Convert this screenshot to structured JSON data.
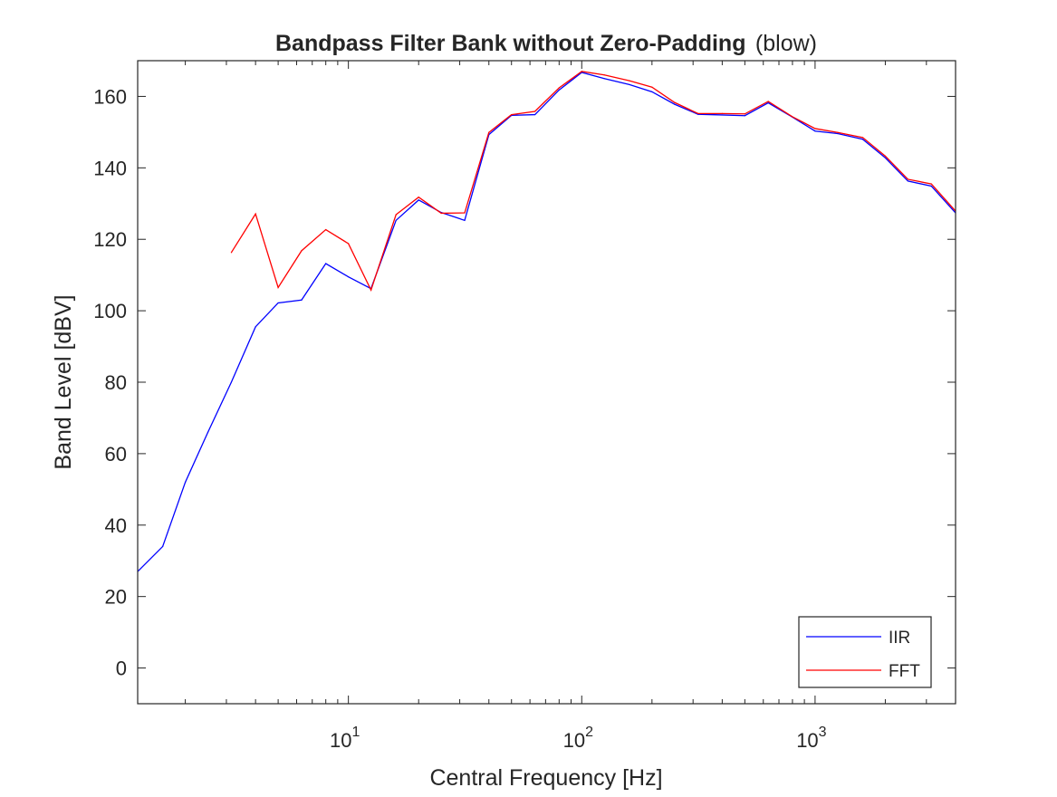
{
  "chart_data": {
    "type": "line",
    "title": "Bandpass Filter Bank without Zero-Padding",
    "subtitle": "(blow)",
    "xlabel": "Central Frequency [Hz]",
    "ylabel": "Band Level [dBV]",
    "x_scale": "log",
    "xlim": [
      1.25,
      4000
    ],
    "ylim": [
      -10,
      170
    ],
    "x_ticks": [
      10,
      100,
      1000
    ],
    "x_tick_labels": [
      {
        "base": "10",
        "exp": "1"
      },
      {
        "base": "10",
        "exp": "2"
      },
      {
        "base": "10",
        "exp": "3"
      }
    ],
    "y_ticks": [
      0,
      20,
      40,
      60,
      80,
      100,
      120,
      140,
      160
    ],
    "y_tick_labels": [
      "0",
      "20",
      "40",
      "60",
      "80",
      "100",
      "120",
      "140",
      "160"
    ],
    "grid": false,
    "legend_position": "bottom-right",
    "series": [
      {
        "name": "IIR",
        "color": "#0000ff",
        "x": [
          1.25,
          1.6,
          2,
          2.5,
          3.15,
          4,
          5,
          6.3,
          8,
          10,
          12.5,
          16,
          20,
          25,
          31.5,
          40,
          50,
          63,
          80,
          100,
          125,
          160,
          200,
          250,
          315,
          400,
          500,
          630,
          800,
          1000,
          1250,
          1600,
          2000,
          2500,
          3150,
          4000
        ],
        "values": [
          27,
          34,
          52,
          66,
          80,
          95.5,
          102.2,
          103,
          113.2,
          109.5,
          106.2,
          125.3,
          131,
          127.5,
          125.3,
          149.3,
          154.7,
          154.9,
          161.8,
          166.7,
          165,
          163.3,
          161.3,
          157.8,
          155,
          154.8,
          154.6,
          158.2,
          154.2,
          150.3,
          149.6,
          148,
          142.8,
          136.3,
          134.9,
          127.4
        ]
      },
      {
        "name": "FFT",
        "color": "#ff0000",
        "x": [
          3.15,
          4,
          5,
          6.3,
          8,
          10,
          12.5,
          16,
          20,
          25,
          31.5,
          40,
          50,
          63,
          80,
          100,
          125,
          160,
          200,
          250,
          315,
          400,
          500,
          630,
          800,
          1000,
          1250,
          1600,
          2000,
          2500,
          3150,
          4000
        ],
        "values": [
          116.3,
          127.1,
          106.5,
          116.8,
          122.7,
          118.8,
          105.8,
          126.9,
          131.8,
          127.3,
          127.4,
          149.9,
          154.9,
          155.8,
          162.4,
          167,
          166,
          164.4,
          162.6,
          158.3,
          155.2,
          155.2,
          155.1,
          158.6,
          154.3,
          151,
          149.9,
          148.5,
          143.3,
          136.8,
          135.5,
          127.9
        ]
      }
    ]
  }
}
